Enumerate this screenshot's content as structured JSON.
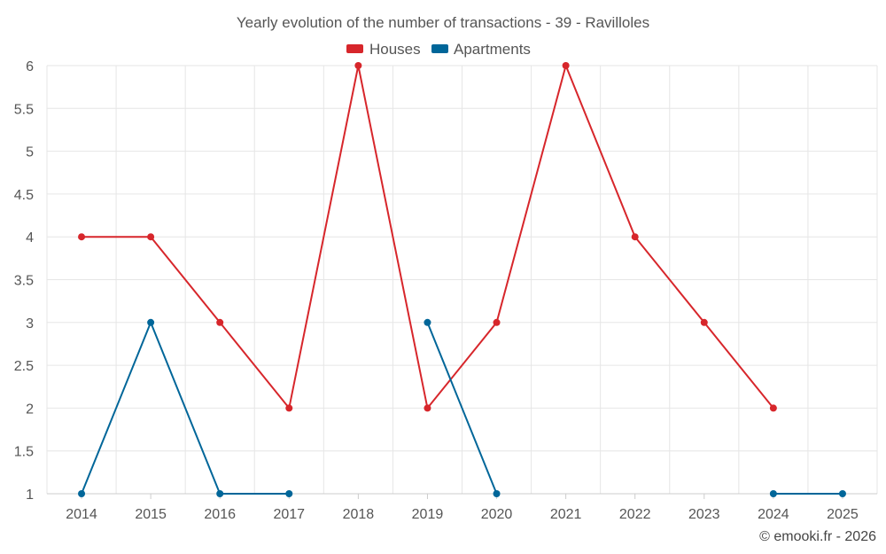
{
  "chart_data": {
    "type": "line",
    "title": "Yearly evolution of the number of transactions - 39 - Ravilloles",
    "categories": [
      "2014",
      "2015",
      "2016",
      "2017",
      "2018",
      "2019",
      "2020",
      "2021",
      "2022",
      "2023",
      "2024",
      "2025"
    ],
    "y_ticks": [
      "1",
      "1.5",
      "2",
      "2.5",
      "3",
      "3.5",
      "4",
      "4.5",
      "5",
      "5.5",
      "6"
    ],
    "ylim": [
      1,
      6
    ],
    "grid": true,
    "legend_position": "top-center",
    "series": [
      {
        "name": "Houses",
        "color": "#d7262b",
        "values": [
          4,
          4,
          3,
          2,
          6,
          2,
          3,
          6,
          4,
          3,
          2,
          null
        ]
      },
      {
        "name": "Apartments",
        "color": "#006699",
        "values": [
          1,
          3,
          1,
          1,
          null,
          3,
          1,
          null,
          null,
          null,
          1,
          1
        ]
      }
    ]
  },
  "credit": "© emooki.fr - 2026"
}
